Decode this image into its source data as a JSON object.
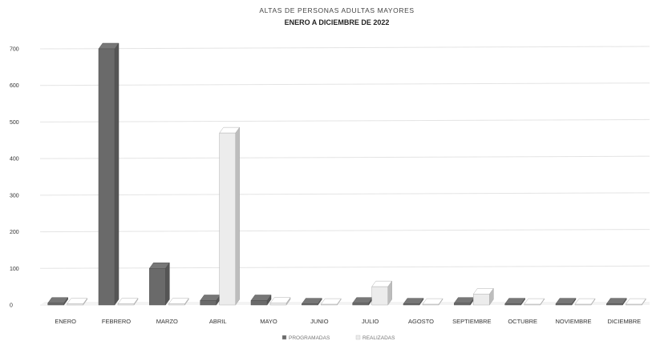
{
  "chart_data": {
    "type": "bar",
    "title": "ALTAS DE PERSONAS ADULTAS MAYORES",
    "subtitle": "ENERO A DICIEMBRE DE 2022",
    "categories": [
      "ENERO",
      "FEBRERO",
      "MARZO",
      "ABRIL",
      "MAYO",
      "JUNIO",
      "JULIO",
      "AGOSTO",
      "SEPTIEMBRE",
      "OCTUBRE",
      "NOVIEMBRE",
      "DICIEMBRE"
    ],
    "series": [
      {
        "name": "PROGRAMADAS",
        "values": [
          5,
          700,
          100,
          12,
          12,
          3,
          5,
          3,
          5,
          3,
          3,
          3
        ]
      },
      {
        "name": "REALIZADAS",
        "values": [
          3,
          3,
          3,
          470,
          5,
          2,
          50,
          2,
          30,
          2,
          2,
          2
        ]
      }
    ],
    "colors": {
      "PROGRAMADAS": "#6a6a6a",
      "REALIZADAS": "#ececec"
    },
    "ylim": [
      0,
      700
    ],
    "yticks": [
      0,
      100,
      200,
      300,
      400,
      500,
      600,
      700
    ],
    "grid": true,
    "legend_position": "bottom"
  }
}
